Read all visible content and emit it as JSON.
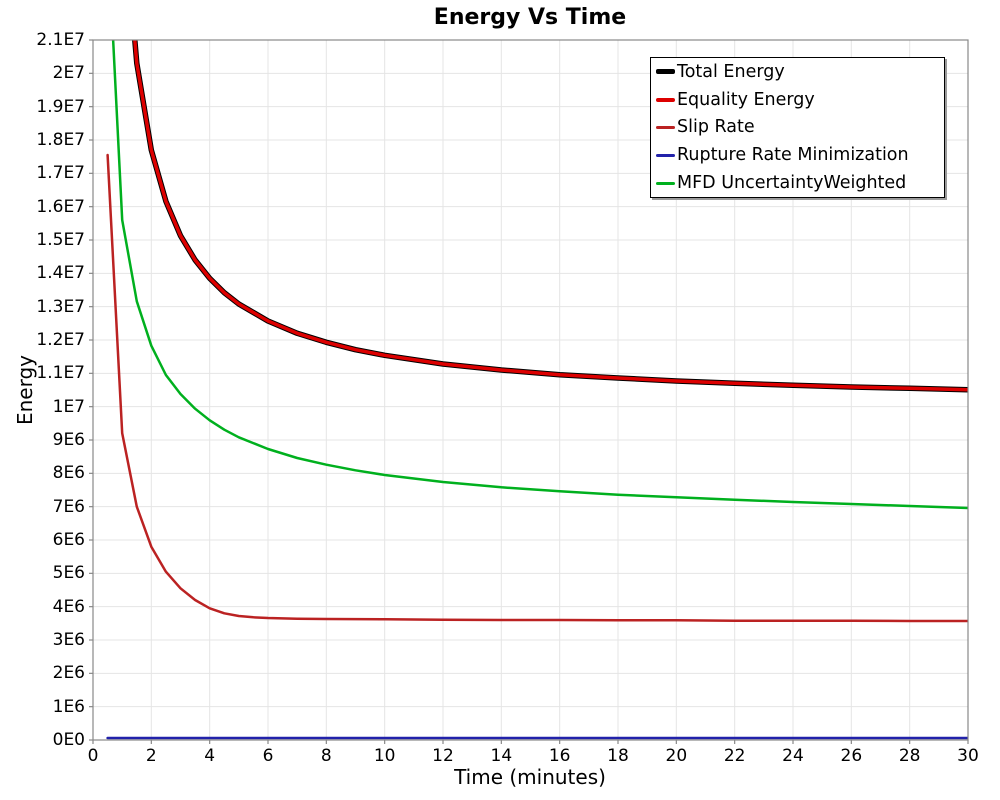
{
  "chart_data": {
    "type": "line",
    "title": "Energy Vs Time",
    "xlabel": "Time (minutes)",
    "ylabel": "Energy",
    "xlim": [
      0,
      30
    ],
    "ylim": [
      0,
      21000000
    ],
    "grid": true,
    "legend_position": "top-right",
    "background": "#ffffff",
    "grid_color": "#e5e5e5",
    "axis_color": "#888888",
    "x_ticks": {
      "values": [
        0,
        2,
        4,
        6,
        8,
        10,
        12,
        14,
        16,
        18,
        20,
        22,
        24,
        26,
        28,
        30
      ],
      "labels": [
        "0",
        "2",
        "4",
        "6",
        "8",
        "10",
        "12",
        "14",
        "16",
        "18",
        "20",
        "22",
        "24",
        "26",
        "28",
        "30"
      ]
    },
    "y_ticks": {
      "values": [
        0,
        1000000,
        2000000,
        3000000,
        4000000,
        5000000,
        6000000,
        7000000,
        8000000,
        9000000,
        10000000,
        11000000,
        12000000,
        13000000,
        14000000,
        15000000,
        16000000,
        17000000,
        18000000,
        19000000,
        20000000,
        21000000
      ],
      "labels": [
        "0E0",
        "1E6",
        "2E6",
        "3E6",
        "4E6",
        "5E6",
        "6E6",
        "7E6",
        "8E6",
        "9E6",
        "1E7",
        "1.1E7",
        "1.2E7",
        "1.3E7",
        "1.4E7",
        "1.5E7",
        "1.6E7",
        "1.7E7",
        "1.8E7",
        "1.9E7",
        "2E7",
        "2.1E7"
      ]
    },
    "series": [
      {
        "name": "Total Energy",
        "color": "#000000",
        "line_width": 5.5,
        "swatch_height": 5,
        "x": [
          1.0,
          1.5,
          2,
          2.5,
          3,
          3.5,
          4,
          4.5,
          5,
          6,
          7,
          8,
          9,
          10,
          12,
          14,
          16,
          18,
          20,
          22,
          24,
          26,
          28,
          30
        ],
        "y": [
          25400000,
          20300000,
          17700000,
          16160000,
          15130000,
          14400000,
          13850000,
          13420000,
          13080000,
          12570000,
          12200000,
          11930000,
          11710000,
          11540000,
          11280000,
          11100000,
          10960000,
          10860000,
          10770000,
          10700000,
          10640000,
          10590000,
          10550000,
          10510000
        ]
      },
      {
        "name": "Equality Energy",
        "color": "#dd0000",
        "line_width": 3.5,
        "swatch_height": 4,
        "x": [
          1.0,
          1.5,
          2,
          2.5,
          3,
          3.5,
          4,
          4.5,
          5,
          6,
          7,
          8,
          9,
          10,
          12,
          14,
          16,
          18,
          20,
          22,
          24,
          26,
          28,
          30
        ],
        "y": [
          25400000,
          20300000,
          17700000,
          16160000,
          15130000,
          14400000,
          13850000,
          13420000,
          13080000,
          12570000,
          12200000,
          11930000,
          11710000,
          11540000,
          11280000,
          11100000,
          10960000,
          10860000,
          10770000,
          10700000,
          10640000,
          10590000,
          10550000,
          10510000
        ]
      },
      {
        "name": "Slip Rate",
        "color": "#bb2222",
        "line_width": 2.5,
        "swatch_height": 3,
        "x": [
          0.5,
          1,
          1.5,
          2,
          2.5,
          3,
          3.5,
          4,
          4.5,
          5,
          5.5,
          6,
          7,
          8,
          10,
          12,
          14,
          16,
          18,
          20,
          22,
          24,
          26,
          28,
          30
        ],
        "y": [
          17550000,
          9200000,
          7000000,
          5800000,
          5050000,
          4550000,
          4200000,
          3950000,
          3800000,
          3720000,
          3680000,
          3660000,
          3640000,
          3630000,
          3620000,
          3610000,
          3600000,
          3600000,
          3590000,
          3590000,
          3580000,
          3580000,
          3580000,
          3570000,
          3570000
        ]
      },
      {
        "name": "Rupture Rate Minimization",
        "color": "#2222aa",
        "line_width": 2.5,
        "swatch_height": 3,
        "x": [
          0.5,
          5,
          10,
          15,
          20,
          25,
          30
        ],
        "y": [
          60000,
          60000,
          60000,
          60000,
          60000,
          60000,
          60000
        ]
      },
      {
        "name": "MFD UncertaintyWeighted",
        "color": "#00b01e",
        "line_width": 2.5,
        "swatch_height": 3,
        "x": [
          0.5,
          1,
          1.5,
          2,
          2.5,
          3,
          3.5,
          4,
          4.5,
          5,
          6,
          7,
          8,
          9,
          10,
          12,
          14,
          16,
          18,
          20,
          22,
          24,
          26,
          28,
          30
        ],
        "y": [
          24300000,
          15600000,
          13160000,
          11830000,
          10950000,
          10380000,
          9940000,
          9590000,
          9310000,
          9080000,
          8730000,
          8460000,
          8260000,
          8090000,
          7950000,
          7740000,
          7580000,
          7460000,
          7360000,
          7280000,
          7210000,
          7140000,
          7080000,
          7020000,
          6960000
        ]
      }
    ]
  }
}
